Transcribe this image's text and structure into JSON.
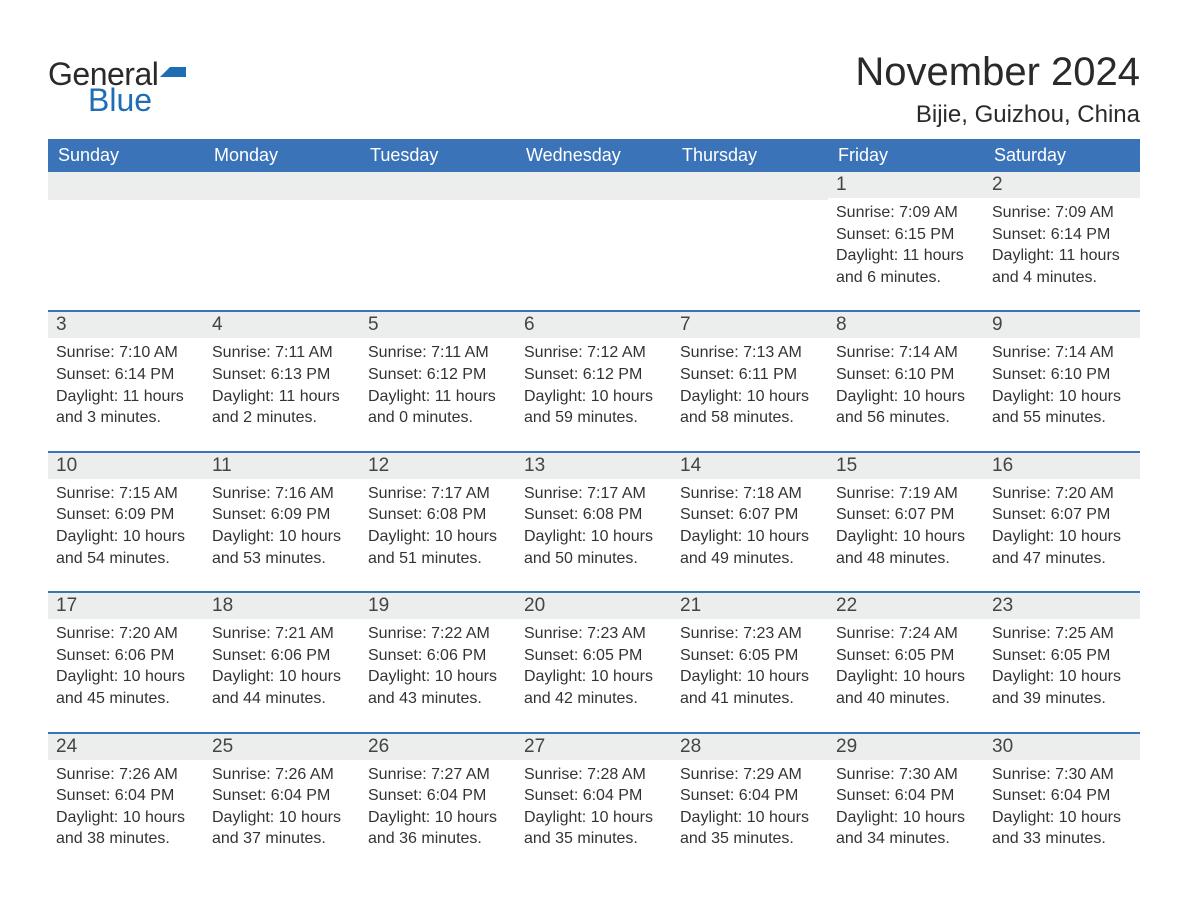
{
  "logo": {
    "text1": "General",
    "text2": "Blue",
    "accent_color": "#1f6db3"
  },
  "title": "November 2024",
  "location": "Bijie, Guizhou, China",
  "colors": {
    "header_bg": "#3b73b9",
    "header_text": "#ffffff",
    "daynum_bg": "#eceded",
    "daynum_border": "#3b73b9",
    "body_text": "#333333",
    "title_text": "#2a2a2a",
    "page_bg": "#ffffff"
  },
  "typography": {
    "title_fontsize": 40,
    "location_fontsize": 24,
    "dow_fontsize": 18,
    "daynum_fontsize": 19,
    "detail_fontsize": 16,
    "font_family": "Arial"
  },
  "days_of_week": [
    "Sunday",
    "Monday",
    "Tuesday",
    "Wednesday",
    "Thursday",
    "Friday",
    "Saturday"
  ],
  "first_weekday_index": 5,
  "weeks": [
    [
      null,
      null,
      null,
      null,
      null,
      {
        "n": "1",
        "sunrise": "7:09 AM",
        "sunset": "6:15 PM",
        "daylight": "11 hours and 6 minutes."
      },
      {
        "n": "2",
        "sunrise": "7:09 AM",
        "sunset": "6:14 PM",
        "daylight": "11 hours and 4 minutes."
      }
    ],
    [
      {
        "n": "3",
        "sunrise": "7:10 AM",
        "sunset": "6:14 PM",
        "daylight": "11 hours and 3 minutes."
      },
      {
        "n": "4",
        "sunrise": "7:11 AM",
        "sunset": "6:13 PM",
        "daylight": "11 hours and 2 minutes."
      },
      {
        "n": "5",
        "sunrise": "7:11 AM",
        "sunset": "6:12 PM",
        "daylight": "11 hours and 0 minutes."
      },
      {
        "n": "6",
        "sunrise": "7:12 AM",
        "sunset": "6:12 PM",
        "daylight": "10 hours and 59 minutes."
      },
      {
        "n": "7",
        "sunrise": "7:13 AM",
        "sunset": "6:11 PM",
        "daylight": "10 hours and 58 minutes."
      },
      {
        "n": "8",
        "sunrise": "7:14 AM",
        "sunset": "6:10 PM",
        "daylight": "10 hours and 56 minutes."
      },
      {
        "n": "9",
        "sunrise": "7:14 AM",
        "sunset": "6:10 PM",
        "daylight": "10 hours and 55 minutes."
      }
    ],
    [
      {
        "n": "10",
        "sunrise": "7:15 AM",
        "sunset": "6:09 PM",
        "daylight": "10 hours and 54 minutes."
      },
      {
        "n": "11",
        "sunrise": "7:16 AM",
        "sunset": "6:09 PM",
        "daylight": "10 hours and 53 minutes."
      },
      {
        "n": "12",
        "sunrise": "7:17 AM",
        "sunset": "6:08 PM",
        "daylight": "10 hours and 51 minutes."
      },
      {
        "n": "13",
        "sunrise": "7:17 AM",
        "sunset": "6:08 PM",
        "daylight": "10 hours and 50 minutes."
      },
      {
        "n": "14",
        "sunrise": "7:18 AM",
        "sunset": "6:07 PM",
        "daylight": "10 hours and 49 minutes."
      },
      {
        "n": "15",
        "sunrise": "7:19 AM",
        "sunset": "6:07 PM",
        "daylight": "10 hours and 48 minutes."
      },
      {
        "n": "16",
        "sunrise": "7:20 AM",
        "sunset": "6:07 PM",
        "daylight": "10 hours and 47 minutes."
      }
    ],
    [
      {
        "n": "17",
        "sunrise": "7:20 AM",
        "sunset": "6:06 PM",
        "daylight": "10 hours and 45 minutes."
      },
      {
        "n": "18",
        "sunrise": "7:21 AM",
        "sunset": "6:06 PM",
        "daylight": "10 hours and 44 minutes."
      },
      {
        "n": "19",
        "sunrise": "7:22 AM",
        "sunset": "6:06 PM",
        "daylight": "10 hours and 43 minutes."
      },
      {
        "n": "20",
        "sunrise": "7:23 AM",
        "sunset": "6:05 PM",
        "daylight": "10 hours and 42 minutes."
      },
      {
        "n": "21",
        "sunrise": "7:23 AM",
        "sunset": "6:05 PM",
        "daylight": "10 hours and 41 minutes."
      },
      {
        "n": "22",
        "sunrise": "7:24 AM",
        "sunset": "6:05 PM",
        "daylight": "10 hours and 40 minutes."
      },
      {
        "n": "23",
        "sunrise": "7:25 AM",
        "sunset": "6:05 PM",
        "daylight": "10 hours and 39 minutes."
      }
    ],
    [
      {
        "n": "24",
        "sunrise": "7:26 AM",
        "sunset": "6:04 PM",
        "daylight": "10 hours and 38 minutes."
      },
      {
        "n": "25",
        "sunrise": "7:26 AM",
        "sunset": "6:04 PM",
        "daylight": "10 hours and 37 minutes."
      },
      {
        "n": "26",
        "sunrise": "7:27 AM",
        "sunset": "6:04 PM",
        "daylight": "10 hours and 36 minutes."
      },
      {
        "n": "27",
        "sunrise": "7:28 AM",
        "sunset": "6:04 PM",
        "daylight": "10 hours and 35 minutes."
      },
      {
        "n": "28",
        "sunrise": "7:29 AM",
        "sunset": "6:04 PM",
        "daylight": "10 hours and 35 minutes."
      },
      {
        "n": "29",
        "sunrise": "7:30 AM",
        "sunset": "6:04 PM",
        "daylight": "10 hours and 34 minutes."
      },
      {
        "n": "30",
        "sunrise": "7:30 AM",
        "sunset": "6:04 PM",
        "daylight": "10 hours and 33 minutes."
      }
    ]
  ],
  "labels": {
    "sunrise": "Sunrise: ",
    "sunset": "Sunset: ",
    "daylight": "Daylight: "
  }
}
